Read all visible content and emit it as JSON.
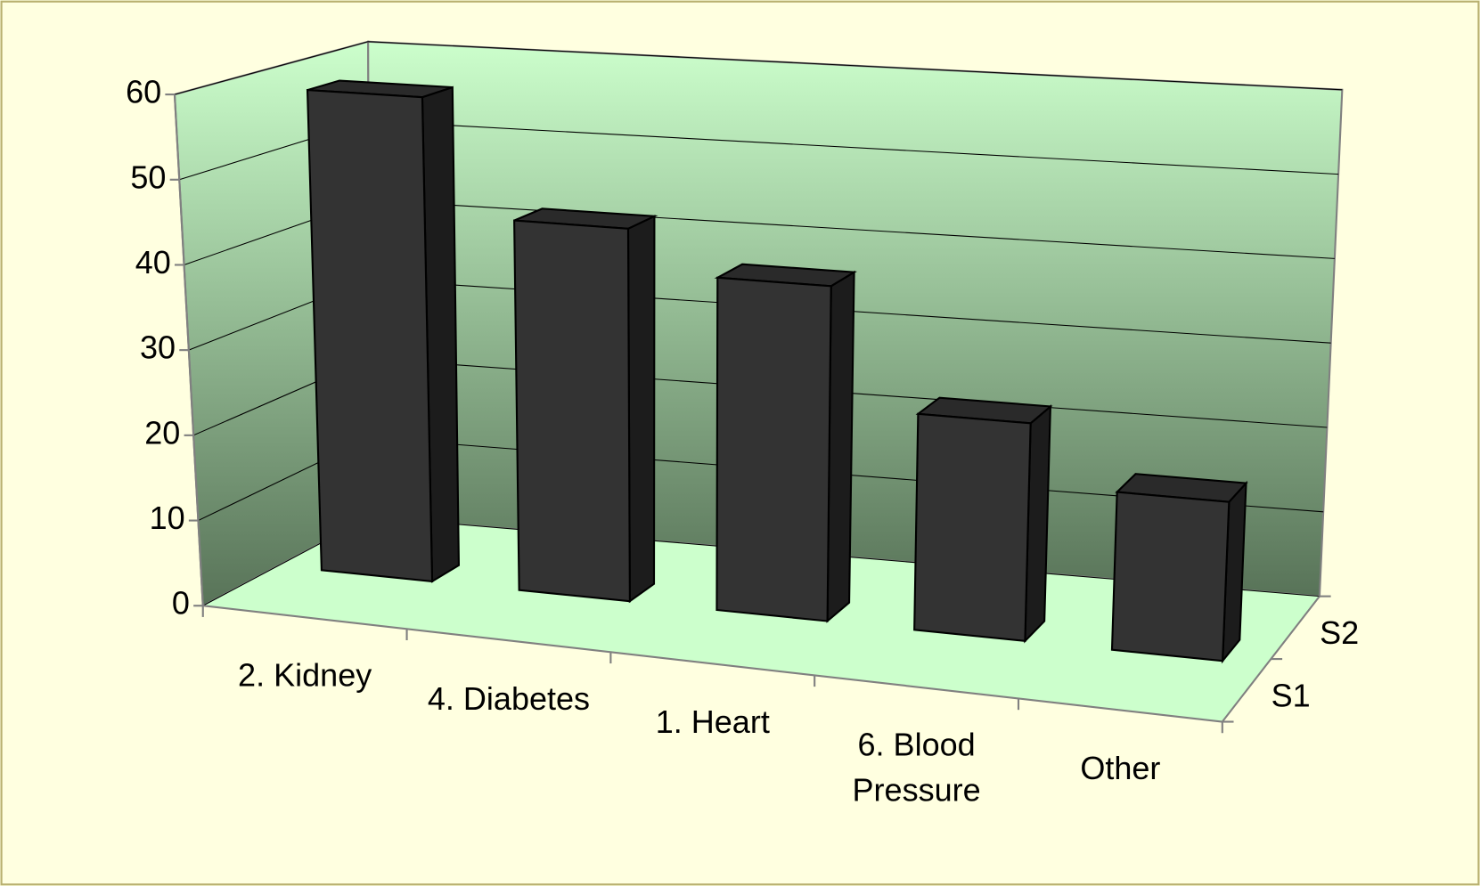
{
  "chart_data": {
    "type": "bar3d",
    "categories": [
      "2. Kidney",
      "4. Diabetes",
      "1. Heart",
      "6. Blood Pressure",
      "Other"
    ],
    "values": [
      58,
      44,
      39,
      25,
      18
    ],
    "color": "#333333",
    "depth_categories": [
      "S1",
      "S2"
    ],
    "ylim": [
      0,
      60
    ],
    "yticks": [
      0,
      10,
      20,
      30,
      40,
      50,
      60
    ],
    "grid": true
  }
}
